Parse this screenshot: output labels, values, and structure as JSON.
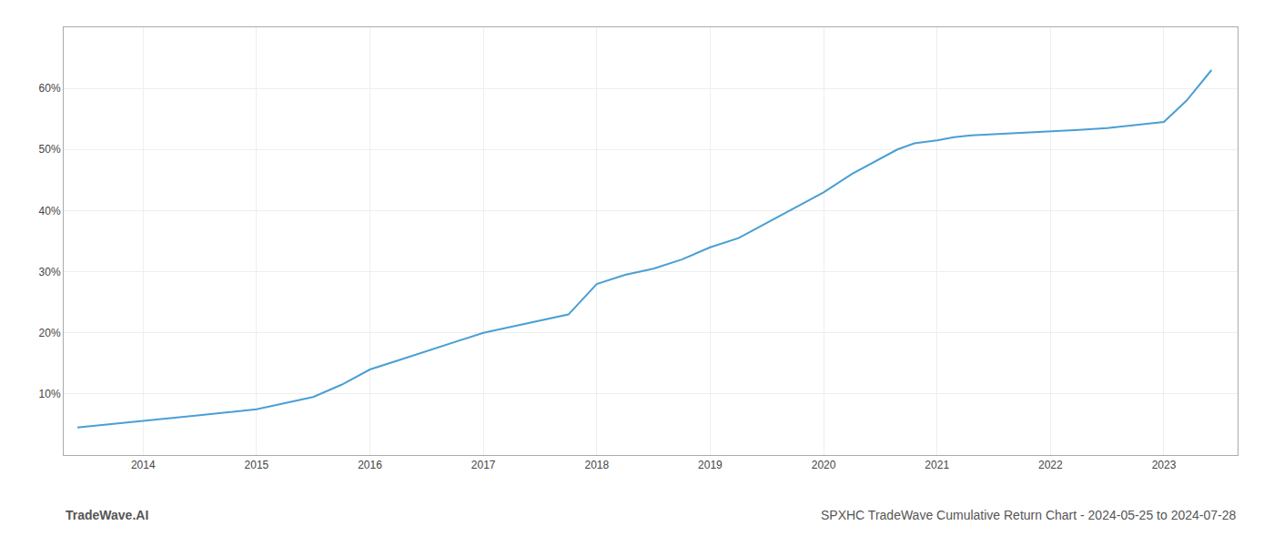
{
  "chart_data": {
    "type": "line",
    "title": "SPXHC TradeWave Cumulative Return Chart - 2024-05-25 to 2024-07-28",
    "annotations": [
      "TradeWave.AI"
    ],
    "color": "#4a9fd4",
    "x": [
      2013.42,
      2013.7,
      2014.0,
      2014.25,
      2014.5,
      2014.75,
      2015.0,
      2015.25,
      2015.5,
      2015.75,
      2016.0,
      2016.25,
      2016.5,
      2016.75,
      2017.0,
      2017.25,
      2017.5,
      2017.75,
      2018.0,
      2018.25,
      2018.5,
      2018.75,
      2019.0,
      2019.25,
      2019.5,
      2019.75,
      2020.0,
      2020.25,
      2020.5,
      2020.65,
      2020.8,
      2021.0,
      2021.15,
      2021.3,
      2021.5,
      2021.75,
      2022.0,
      2022.25,
      2022.5,
      2022.75,
      2023.0,
      2023.2,
      2023.42
    ],
    "values": [
      4.5,
      5.0,
      5.5,
      6.0,
      6.5,
      7.0,
      7.5,
      8.5,
      9.5,
      11.5,
      14.0,
      15.5,
      17.0,
      18.5,
      20.0,
      21.0,
      22.0,
      23.0,
      28.0,
      29.5,
      30.5,
      32.0,
      34.0,
      35.5,
      38.0,
      40.5,
      43.0,
      46.0,
      48.5,
      50.0,
      51.0,
      51.5,
      52.0,
      52.3,
      52.5,
      52.7,
      53.0,
      53.2,
      53.5,
      54.0,
      54.5,
      58.0,
      63.0
    ],
    "xlim": [
      2013.3,
      2023.65
    ],
    "ylim": [
      0,
      70
    ],
    "xticks": [
      2014,
      2015,
      2016,
      2017,
      2018,
      2019,
      2020,
      2021,
      2022,
      2023
    ],
    "yticks": [
      {
        "value": 10,
        "label": "10%"
      },
      {
        "value": 20,
        "label": "20%"
      },
      {
        "value": 30,
        "label": "30%"
      },
      {
        "value": 40,
        "label": "40%"
      },
      {
        "value": 50,
        "label": "50%"
      },
      {
        "value": 60,
        "label": "60%"
      }
    ],
    "grid": true
  }
}
